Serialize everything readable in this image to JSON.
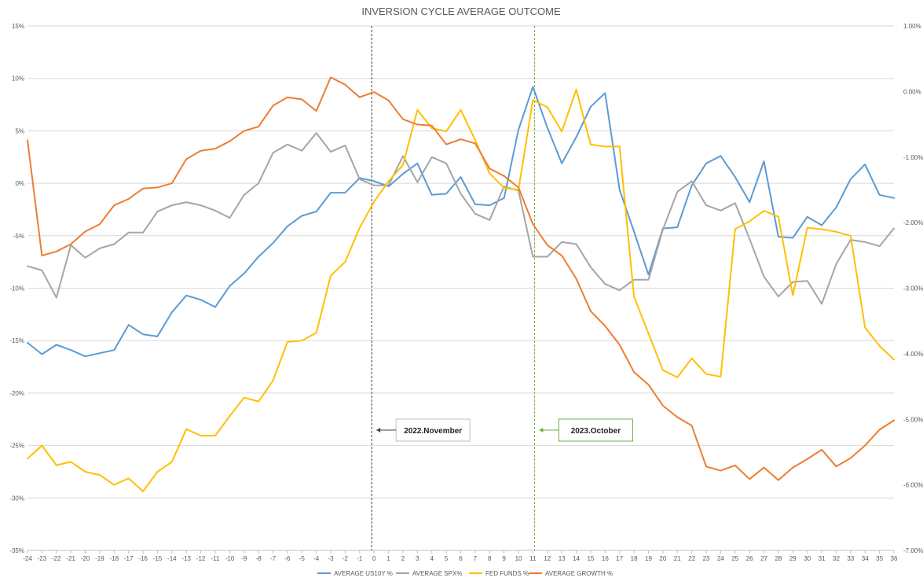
{
  "chart_data": {
    "type": "line",
    "title": "INVERSION CYCLE AVERAGE OUTCOME",
    "x": [
      -24,
      -23,
      -22,
      -21,
      -20,
      -19,
      -18,
      -17,
      -16,
      -15,
      -14,
      -13,
      -12,
      -11,
      -10,
      -9,
      -8,
      -7,
      -6,
      -5,
      -4,
      -3,
      -2,
      -1,
      0,
      1,
      2,
      3,
      4,
      5,
      6,
      7,
      8,
      9,
      10,
      11,
      12,
      13,
      14,
      15,
      16,
      17,
      18,
      19,
      20,
      21,
      22,
      23,
      24,
      25,
      26,
      27,
      28,
      29,
      30,
      31,
      32,
      33,
      34,
      35,
      36
    ],
    "xlim": [
      -24,
      36
    ],
    "y_left": {
      "min": -35,
      "max": 15,
      "step": 5,
      "suffix": "%"
    },
    "y_right": {
      "min": -7.0,
      "max": 1.0,
      "step": 1.0,
      "suffix": "%"
    },
    "gridlines": true,
    "legend_position": "bottom",
    "series": [
      {
        "name": "AVERAGE US10Y %",
        "axis": "left",
        "color": "#5b9bd5",
        "values": [
          -15.2,
          -16.3,
          -15.4,
          -15.9,
          -16.5,
          -16.2,
          -15.9,
          -13.5,
          -14.4,
          -14.6,
          -12.3,
          -10.7,
          -11.1,
          -11.8,
          -9.8,
          -8.6,
          -7.0,
          -5.7,
          -4.1,
          -3.1,
          -2.7,
          -0.9,
          -0.9,
          0.5,
          0.2,
          -0.3,
          0.9,
          1.9,
          -1.1,
          -1.0,
          0.6,
          -2.0,
          -2.1,
          -1.4,
          5.1,
          9.2,
          5.3,
          1.9,
          4.4,
          7.3,
          8.6,
          -0.6,
          -4.6,
          -8.7,
          -4.3,
          -4.2,
          -0.2,
          1.9,
          2.6,
          0.6,
          -1.8,
          2.1,
          -5.1,
          -5.2,
          -3.2,
          -4.0,
          -2.3,
          0.4,
          1.8,
          -1.1,
          -1.4
        ]
      },
      {
        "name": "AVERAGE SPX%",
        "axis": "left",
        "color": "#a5a5a5",
        "values": [
          -7.9,
          -8.3,
          -10.9,
          -5.9,
          -7.1,
          -6.2,
          -5.8,
          -4.7,
          -4.7,
          -2.7,
          -2.1,
          -1.8,
          -2.1,
          -2.6,
          -3.3,
          -1.1,
          0.0,
          2.9,
          3.7,
          3.1,
          4.8,
          3.0,
          3.6,
          0.4,
          -0.2,
          -0.2,
          2.6,
          0.1,
          2.5,
          1.9,
          -1.0,
          -2.9,
          -3.5,
          -0.3,
          -0.7,
          -7.0,
          -7.0,
          -5.6,
          -5.8,
          -8.0,
          -9.6,
          -10.2,
          -9.2,
          -9.2,
          -4.4,
          -0.8,
          0.2,
          -2.1,
          -2.6,
          -1.9,
          -5.3,
          -8.9,
          -10.8,
          -9.4,
          -9.3,
          -11.5,
          -7.7,
          -5.4,
          -5.6,
          -6.0,
          -4.3
        ]
      },
      {
        "name": "FED FUNDS %",
        "axis": "right",
        "color": "#ffc000",
        "values": [
          -5.6,
          -5.4,
          -5.7,
          -5.65,
          -5.8,
          -5.85,
          -6.0,
          -5.9,
          -6.1,
          -5.8,
          -5.65,
          -5.15,
          -5.25,
          -5.25,
          -4.95,
          -4.67,
          -4.73,
          -4.41,
          -3.82,
          -3.8,
          -3.68,
          -2.81,
          -2.6,
          -2.08,
          -1.68,
          -1.37,
          -1.12,
          -0.28,
          -0.56,
          -0.61,
          -0.28,
          -0.74,
          -1.25,
          -1.47,
          -1.5,
          -0.13,
          -0.24,
          -0.61,
          0.03,
          -0.81,
          -0.84,
          -0.84,
          -3.13,
          -3.69,
          -4.25,
          -4.36,
          -4.07,
          -4.31,
          -4.35,
          -2.1,
          -1.98,
          -1.82,
          -1.91,
          -3.11,
          -2.08,
          -2.1,
          -2.14,
          -2.2,
          -3.6,
          -3.88,
          -4.09
        ]
      },
      {
        "name": "AVERAGE GROWTH %",
        "axis": "left",
        "color": "#ed7d31",
        "values": [
          4.1,
          -6.9,
          -6.5,
          -5.8,
          -4.6,
          -3.9,
          -2.1,
          -1.5,
          -0.5,
          -0.4,
          0.0,
          2.3,
          3.1,
          3.3,
          4.0,
          5.0,
          5.4,
          7.4,
          8.2,
          8.0,
          6.9,
          10.1,
          9.4,
          8.2,
          8.7,
          7.9,
          6.1,
          5.6,
          5.5,
          3.7,
          4.2,
          3.8,
          1.4,
          0.7,
          -0.4,
          -3.9,
          -5.9,
          -6.9,
          -9.1,
          -12.2,
          -13.6,
          -15.4,
          -18.0,
          -19.2,
          -21.2,
          -22.3,
          -23.1,
          -27.0,
          -27.4,
          -26.9,
          -28.2,
          -27.1,
          -28.3,
          -27.1,
          -26.3,
          -25.4,
          -27.0,
          -26.2,
          -25.0,
          -23.5,
          -22.6
        ]
      }
    ],
    "markers": [
      {
        "label": "2022.November",
        "x": 0,
        "color": "#404040"
      },
      {
        "label": "2023.October",
        "x": 11,
        "color": "#70ad47"
      }
    ]
  }
}
